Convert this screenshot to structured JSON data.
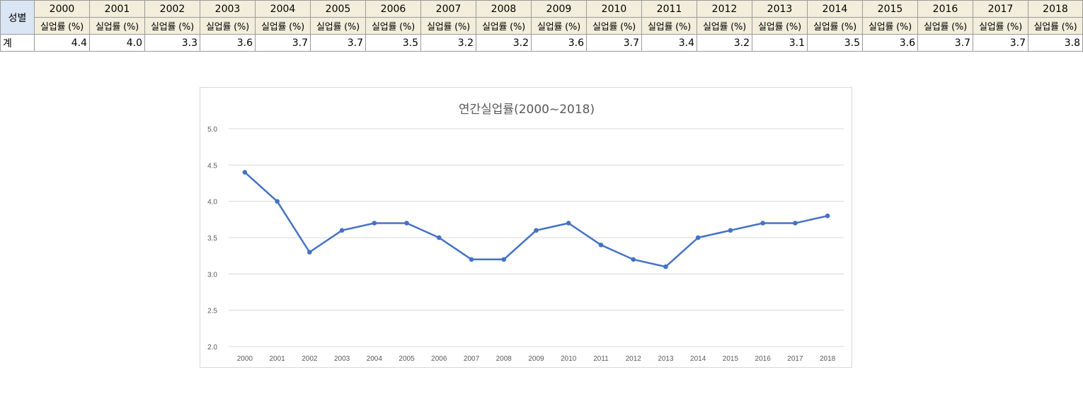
{
  "sheet": {
    "corner_label": "성별",
    "unit_label": "실업률 (%)",
    "row_label": "계",
    "years": [
      "2000",
      "2001",
      "2002",
      "2003",
      "2004",
      "2005",
      "2006",
      "2007",
      "2008",
      "2009",
      "2010",
      "2011",
      "2012",
      "2013",
      "2014",
      "2015",
      "2016",
      "2017",
      "2018"
    ],
    "values": [
      "4.4",
      "4.0",
      "3.3",
      "3.6",
      "3.7",
      "3.7",
      "3.5",
      "3.2",
      "3.2",
      "3.6",
      "3.7",
      "3.4",
      "3.2",
      "3.1",
      "3.5",
      "3.6",
      "3.7",
      "3.7",
      "3.8"
    ]
  },
  "chart_data": {
    "type": "line",
    "title": "연간실업률(2000~2018)",
    "categories": [
      "2000",
      "2001",
      "2002",
      "2003",
      "2004",
      "2005",
      "2006",
      "2007",
      "2008",
      "2009",
      "2010",
      "2011",
      "2012",
      "2013",
      "2014",
      "2015",
      "2016",
      "2017",
      "2018"
    ],
    "series": [
      {
        "values": [
          4.4,
          4.0,
          3.3,
          3.6,
          3.7,
          3.7,
          3.5,
          3.2,
          3.2,
          3.6,
          3.7,
          3.4,
          3.2,
          3.1,
          3.5,
          3.6,
          3.7,
          3.7,
          3.8
        ]
      }
    ],
    "ylim": [
      2.0,
      5.0
    ],
    "yticks": [
      "2.0",
      "2.5",
      "3.0",
      "3.5",
      "4.0",
      "4.5",
      "5.0"
    ],
    "grid": true,
    "line_color": "#4472c4",
    "grid_color": "#d9d9d9"
  }
}
